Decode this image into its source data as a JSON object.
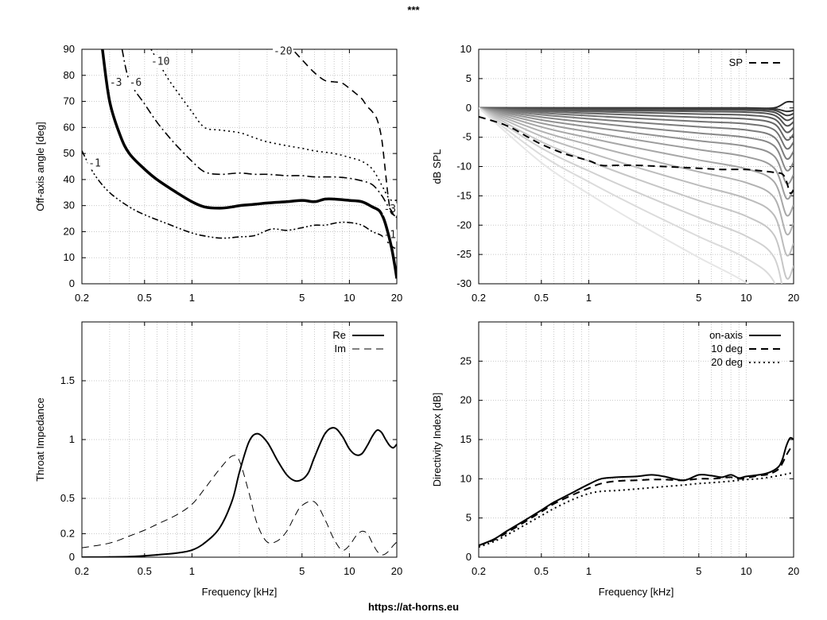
{
  "page": {
    "title": "***",
    "footer": "https://at-horns.eu"
  },
  "chart_data": [
    {
      "id": "polar",
      "type": "line",
      "title": "",
      "xlabel": "",
      "ylabel": "Off-axis angle [deg]",
      "xscale": "log",
      "xlim": [
        0.2,
        20
      ],
      "ylim": [
        0,
        90
      ],
      "xticks": [
        0.2,
        0.5,
        1,
        5,
        10,
        20
      ],
      "xtick_labels": [
        "0.2",
        "0.5",
        "1",
        "5",
        "10",
        "20"
      ],
      "yticks": [
        0,
        10,
        20,
        30,
        40,
        50,
        60,
        70,
        80,
        90
      ],
      "ytick_labels": [
        "0",
        "10",
        "20",
        "30",
        "40",
        "50",
        "60",
        "70",
        "80",
        "90"
      ],
      "grid": true,
      "series": [
        {
          "name": "-1",
          "label": "-1",
          "style": "dashdotdot",
          "width": 1.6,
          "x": [
            0.2,
            0.24,
            0.3,
            0.4,
            0.5,
            0.7,
            1.0,
            1.3,
            1.6,
            2.0,
            2.5,
            3.2,
            4.0,
            5.0,
            6.0,
            7.0,
            8.5,
            10.0,
            12.0,
            14.0,
            16.0,
            17.5,
            18.5,
            19.2,
            20.0
          ],
          "y": [
            51,
            42,
            35,
            29.5,
            26.5,
            23,
            19.5,
            18,
            17.5,
            18,
            18.5,
            21,
            20.5,
            21.5,
            22.5,
            22.5,
            23.5,
            23.5,
            22.5,
            20,
            18.5,
            16,
            14.5,
            13.8,
            13.5
          ],
          "label_at": [
            0.22,
            45
          ]
        },
        {
          "name": "-3",
          "label": "-3",
          "style": "solid",
          "width": 3.5,
          "x": [
            0.27,
            0.3,
            0.35,
            0.4,
            0.5,
            0.6,
            0.8,
            1.0,
            1.2,
            1.5,
            1.8,
            2.0,
            2.5,
            3.0,
            4.0,
            5.0,
            6.0,
            7.0,
            8.0,
            10.0,
            12.0,
            14.0,
            15.5,
            16.5,
            17.5,
            18.5,
            19.3,
            20.0
          ],
          "y": [
            90,
            70,
            57,
            50,
            44,
            40,
            35,
            31.5,
            29.5,
            29,
            29.5,
            30,
            30.5,
            31,
            31.5,
            32,
            31.5,
            32.5,
            32.5,
            32,
            31.5,
            29.5,
            28,
            25,
            20,
            14,
            8,
            2
          ],
          "label_at": [
            0.3,
            76
          ]
        },
        {
          "name": "-6",
          "label": "-6",
          "style": "dashdot",
          "width": 1.6,
          "x": [
            0.36,
            0.4,
            0.5,
            0.6,
            0.7,
            0.8,
            1.0,
            1.2,
            1.5,
            2.0,
            2.5,
            3.0,
            4.0,
            5.0,
            6.0,
            8.0,
            10.0,
            12.0,
            14.0,
            16.0,
            17.5,
            18.5,
            19.3,
            20.0
          ],
          "y": [
            90,
            78,
            69,
            62,
            57,
            53,
            47,
            43,
            42,
            42.5,
            42,
            42,
            41.5,
            41.5,
            41,
            41,
            40.5,
            39.5,
            38,
            34,
            30,
            28,
            26,
            25.5
          ],
          "label_at": [
            0.4,
            76
          ]
        },
        {
          "name": "-10",
          "label": "-10",
          "style": "dotted",
          "width": 1.6,
          "x": [
            0.55,
            0.6,
            0.7,
            0.8,
            1.0,
            1.2,
            1.5,
            2.0,
            2.5,
            3.0,
            4.0,
            5.0,
            6.0,
            8.0,
            10.0,
            12.0,
            14.0,
            16.0,
            17.5,
            18.5,
            19.3,
            20.0
          ],
          "y": [
            90,
            86,
            79,
            74,
            66,
            60,
            59,
            58,
            56,
            54.5,
            53,
            52,
            51,
            50,
            48.5,
            47,
            44,
            38,
            33.5,
            32,
            32,
            32
          ],
          "label_at": [
            0.55,
            84
          ]
        },
        {
          "name": "-20",
          "label": "-20",
          "style": "dashed",
          "width": 1.6,
          "x": [
            4.5,
            5.0,
            6.0,
            7.0,
            8.0,
            9.0,
            10.0,
            11.0,
            12.0,
            13.0,
            14.0,
            15.0,
            16.0,
            16.8,
            17.5,
            18.2,
            19.0,
            19.6,
            20.0
          ],
          "y": [
            89,
            86,
            81,
            78,
            77.5,
            77,
            75,
            73,
            71,
            68,
            66,
            63,
            56,
            45,
            35,
            28,
            26.5,
            26,
            26
          ],
          "label_at": [
            3.3,
            88
          ]
        }
      ]
    },
    {
      "id": "spl",
      "type": "line",
      "title": "",
      "xlabel": "",
      "ylabel": "dB SPL",
      "xscale": "log",
      "xlim": [
        0.2,
        20
      ],
      "ylim": [
        -30,
        10
      ],
      "xticks": [
        0.2,
        0.5,
        1,
        5,
        10,
        20
      ],
      "xtick_labels": [
        "0.2",
        "0.5",
        "1",
        "5",
        "10",
        "20"
      ],
      "yticks": [
        -30,
        -25,
        -20,
        -15,
        -10,
        -5,
        0,
        5,
        10
      ],
      "ytick_labels": [
        "-30",
        "-25",
        "-20",
        "-15",
        "-10",
        "-5",
        "0",
        "5",
        "10"
      ],
      "grid": true,
      "legend": {
        "position": "top-right",
        "entries": [
          "SP"
        ]
      },
      "family": {
        "count": 19,
        "x": [
          0.2,
          0.5,
          1,
          2,
          5,
          10,
          15,
          18,
          20
        ]
      },
      "sp": {
        "name": "SP",
        "x": [
          0.2,
          0.3,
          0.4,
          0.5,
          0.7,
          1.0,
          1.2,
          1.5,
          2.0,
          3.0,
          5.0,
          7.0,
          10.0,
          13.0,
          15.0,
          17.0,
          18.0,
          19.0,
          20.0
        ],
        "y": [
          -1.5,
          -3,
          -4.8,
          -6.2,
          -7.8,
          -9,
          -9.8,
          -9.8,
          -9.8,
          -10,
          -10.3,
          -10.5,
          -10.5,
          -10.8,
          -11,
          -11.3,
          -12.5,
          -14.5,
          -14
        ]
      }
    },
    {
      "id": "impedance",
      "type": "line",
      "title": "",
      "xlabel": "Frequency [kHz]",
      "ylabel": "Throat Impedance",
      "xscale": "log",
      "xlim": [
        0.2,
        20
      ],
      "ylim": [
        0,
        2
      ],
      "xticks": [
        0.2,
        0.5,
        1,
        5,
        10,
        20
      ],
      "xtick_labels": [
        "0.2",
        "0.5",
        "1",
        "5",
        "10",
        "20"
      ],
      "yticks": [
        0,
        0.2,
        0.5,
        1,
        1.5
      ],
      "ytick_labels": [
        "0",
        "0.2",
        "0.5",
        "1",
        "1.5"
      ],
      "grid": true,
      "legend": {
        "position": "top-right",
        "entries": [
          "Re",
          "Im"
        ]
      },
      "series": [
        {
          "name": "Re",
          "style": "solid",
          "width": 2,
          "x": [
            0.2,
            0.4,
            0.6,
            0.8,
            1.0,
            1.2,
            1.5,
            1.8,
            2.0,
            2.3,
            2.6,
            3.0,
            3.5,
            4.0,
            4.5,
            5.0,
            5.5,
            6.0,
            7.0,
            8.0,
            9.0,
            10.0,
            11.0,
            12.0,
            13.0,
            14.0,
            15.0,
            16.0,
            17.0,
            18.0,
            19.0,
            20.0
          ],
          "y": [
            0,
            0.005,
            0.02,
            0.035,
            0.06,
            0.12,
            0.25,
            0.48,
            0.72,
            0.98,
            1.05,
            0.98,
            0.82,
            0.7,
            0.65,
            0.66,
            0.72,
            0.85,
            1.05,
            1.1,
            1.03,
            0.92,
            0.87,
            0.88,
            0.95,
            1.03,
            1.08,
            1.06,
            1.0,
            0.95,
            0.93,
            0.96
          ]
        },
        {
          "name": "Im",
          "style": "dashed",
          "width": 1,
          "x": [
            0.2,
            0.3,
            0.4,
            0.5,
            0.6,
            0.8,
            1.0,
            1.2,
            1.5,
            1.8,
            2.0,
            2.3,
            2.6,
            3.0,
            3.5,
            4.0,
            4.5,
            5.0,
            6.0,
            7.0,
            8.0,
            9.0,
            10.0,
            11.0,
            12.0,
            13.0,
            14.0,
            15.0,
            16.0,
            17.0,
            18.0,
            19.0,
            20.0
          ],
          "y": [
            0.08,
            0.12,
            0.18,
            0.23,
            0.28,
            0.36,
            0.45,
            0.58,
            0.75,
            0.86,
            0.82,
            0.55,
            0.28,
            0.13,
            0.14,
            0.22,
            0.35,
            0.44,
            0.47,
            0.32,
            0.15,
            0.06,
            0.1,
            0.18,
            0.22,
            0.2,
            0.12,
            0.05,
            0.02,
            0.03,
            0.06,
            0.1,
            0.13
          ]
        }
      ]
    },
    {
      "id": "di",
      "type": "line",
      "title": "",
      "xlabel": "Frequency [kHz]",
      "ylabel": "Directivity Index [dB]",
      "xscale": "log",
      "xlim": [
        0.2,
        20
      ],
      "ylim": [
        0,
        30
      ],
      "xticks": [
        0.2,
        0.5,
        1,
        5,
        10,
        20
      ],
      "xtick_labels": [
        "0.2",
        "0.5",
        "1",
        "5",
        "10",
        "20"
      ],
      "yticks": [
        0,
        5,
        10,
        15,
        20,
        25
      ],
      "ytick_labels": [
        "0",
        "5",
        "10",
        "15",
        "20",
        "25"
      ],
      "grid": true,
      "legend": {
        "position": "top-right",
        "entries": [
          "on-axis",
          "10 deg",
          "20 deg"
        ]
      },
      "series": [
        {
          "name": "on-axis",
          "style": "solid",
          "width": 2,
          "x": [
            0.2,
            0.25,
            0.3,
            0.4,
            0.5,
            0.6,
            0.8,
            1.0,
            1.2,
            1.5,
            2.0,
            2.5,
            3.0,
            4.0,
            5.0,
            6.0,
            7.0,
            8.0,
            9.0,
            10.0,
            12.0,
            14.0,
            16.0,
            17.0,
            18.0,
            19.0,
            20.0
          ],
          "y": [
            1.5,
            2.3,
            3.3,
            4.8,
            6.0,
            7.0,
            8.3,
            9.3,
            10.0,
            10.2,
            10.3,
            10.5,
            10.3,
            9.8,
            10.5,
            10.4,
            10.2,
            10.5,
            10.1,
            10.3,
            10.5,
            10.8,
            11.5,
            12.5,
            14.2,
            15.2,
            15.0
          ]
        },
        {
          "name": "10 deg",
          "style": "dashed",
          "width": 2,
          "x": [
            0.2,
            0.25,
            0.3,
            0.4,
            0.5,
            0.6,
            0.8,
            1.0,
            1.2,
            1.5,
            2.0,
            2.5,
            3.0,
            4.0,
            5.0,
            6.0,
            7.0,
            8.0,
            9.0,
            10.0,
            12.0,
            14.0,
            16.0,
            17.0,
            18.0,
            19.0,
            20.0
          ],
          "y": [
            1.5,
            2.2,
            3.1,
            4.6,
            5.8,
            6.8,
            8.0,
            8.8,
            9.4,
            9.7,
            9.8,
            9.9,
            9.9,
            9.8,
            10.0,
            10.0,
            10.1,
            10.2,
            10.0,
            10.1,
            10.4,
            10.6,
            11.2,
            12.0,
            13.0,
            13.8,
            14.2
          ]
        },
        {
          "name": "20 deg",
          "style": "dotted",
          "width": 2,
          "x": [
            0.2,
            0.25,
            0.3,
            0.4,
            0.5,
            0.6,
            0.8,
            1.0,
            1.2,
            1.5,
            2.0,
            3.0,
            4.0,
            5.0,
            6.0,
            8.0,
            10.0,
            12.0,
            14.0,
            16.0,
            18.0,
            20.0
          ],
          "y": [
            1.3,
            2.0,
            2.8,
            4.2,
            5.3,
            6.2,
            7.4,
            8.1,
            8.4,
            8.5,
            8.7,
            9.0,
            9.2,
            9.4,
            9.5,
            9.7,
            9.9,
            10.0,
            10.2,
            10.4,
            10.6,
            10.8
          ]
        }
      ]
    }
  ]
}
